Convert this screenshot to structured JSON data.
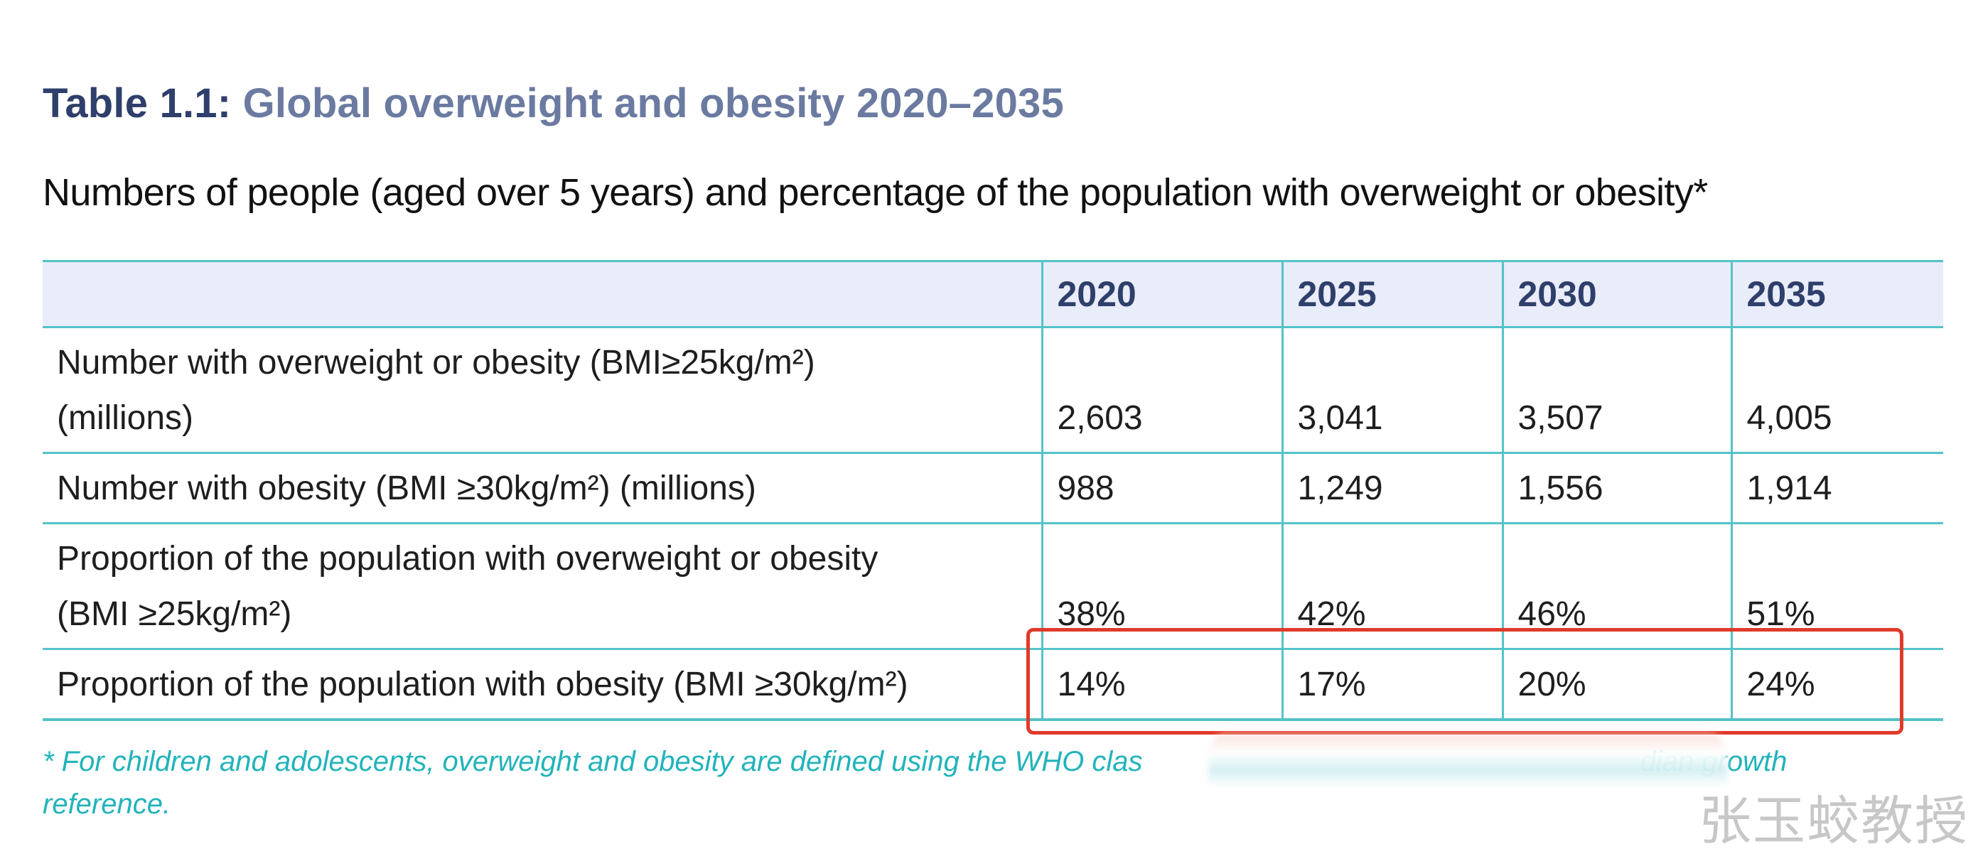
{
  "heading": {
    "label": "Table 1.1",
    "colon": ":",
    "title": "Global overweight and obesity 2020–2035"
  },
  "subheading": "Numbers of people (aged over 5 years) and percentage of the population with overweight or obesity*",
  "table": {
    "header_blank": "",
    "years": [
      "2020",
      "2025",
      "2030",
      "2035"
    ],
    "rows": [
      {
        "label_line1": "Number with overweight or obesity (BMI≥25kg/m²)",
        "label_line2": "(millions)",
        "values": [
          "2,603",
          "3,041",
          "3,507",
          "4,005"
        ]
      },
      {
        "label_line1": "Number with obesity (BMI ≥30kg/m²) (millions)",
        "label_line2": "",
        "values": [
          "988",
          "1,249",
          "1,556",
          "1,914"
        ]
      },
      {
        "label_line1": "Proportion of the population with overweight or obesity",
        "label_line2": "(BMI ≥25kg/m²)",
        "values": [
          "38%",
          "42%",
          "46%",
          "51%"
        ]
      },
      {
        "label_line1": "Proportion of the population with obesity (BMI ≥30kg/m²)",
        "label_line2": "",
        "values": [
          "14%",
          "17%",
          "20%",
          "24%"
        ]
      }
    ]
  },
  "footnote": {
    "line1_start": "* For children and adolescents, overweight and obesity are defined using the WHO clas",
    "line1_end": "dian growth",
    "line2": "reference."
  },
  "watermark": "张玉蛟教授",
  "colors": {
    "heading_label": "#2f3f6b",
    "heading_title": "#6b7aa0",
    "table_border": "#54c3c8",
    "header_bg": "#e9ecf9",
    "footnote": "#22b3bb",
    "highlight": "#e03a2a"
  }
}
